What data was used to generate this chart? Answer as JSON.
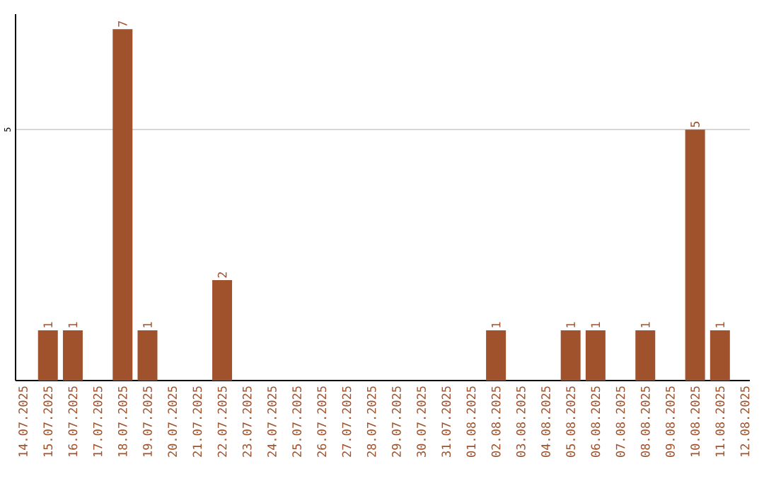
{
  "chart_data": {
    "type": "bar",
    "categories": [
      "14.07.2025",
      "15.07.2025",
      "16.07.2025",
      "17.07.2025",
      "18.07.2025",
      "19.07.2025",
      "20.07.2025",
      "21.07.2025",
      "22.07.2025",
      "23.07.2025",
      "24.07.2025",
      "25.07.2025",
      "26.07.2025",
      "27.07.2025",
      "28.07.2025",
      "29.07.2025",
      "30.07.2025",
      "31.07.2025",
      "01.08.2025",
      "02.08.2025",
      "03.08.2025",
      "04.08.2025",
      "05.08.2025",
      "06.08.2025",
      "07.08.2025",
      "08.08.2025",
      "09.08.2025",
      "10.08.2025",
      "11.08.2025",
      "12.08.2025"
    ],
    "values": [
      0,
      1,
      1,
      0,
      7,
      1,
      0,
      0,
      2,
      0,
      0,
      0,
      0,
      0,
      0,
      0,
      0,
      0,
      0,
      1,
      0,
      0,
      1,
      1,
      0,
      1,
      0,
      5,
      1,
      0
    ],
    "value_labels": [
      null,
      "1",
      "1",
      null,
      "7",
      "1",
      null,
      null,
      "2",
      null,
      null,
      null,
      null,
      null,
      null,
      null,
      null,
      null,
      null,
      "1",
      null,
      null,
      "1",
      "1",
      null,
      "1",
      null,
      "5",
      "1",
      null
    ],
    "color": "#a0522d",
    "ylim": [
      0,
      7.3
    ],
    "yticks": [
      5
    ],
    "grid": "y"
  }
}
